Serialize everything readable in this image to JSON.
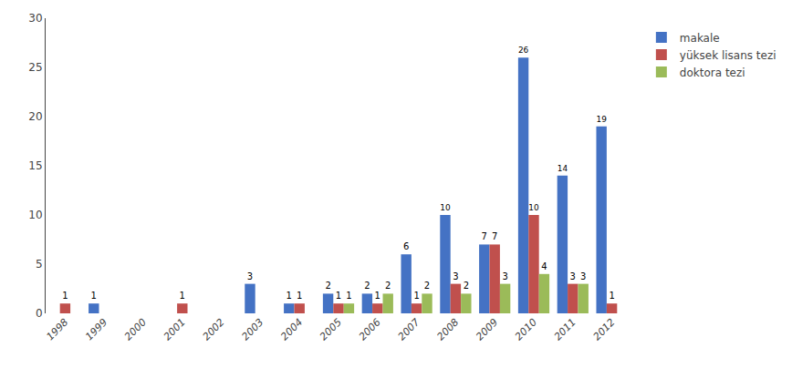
{
  "chart_data": {
    "type": "bar",
    "categories": [
      "1998",
      "1999",
      "2000",
      "2001",
      "2002",
      "2003",
      "2004",
      "2005",
      "2006",
      "2007",
      "2008",
      "2009",
      "2010",
      "2011",
      "2012"
    ],
    "series": [
      {
        "name": "makale",
        "color": "#4472C4",
        "values": [
          0,
          1,
          0,
          0,
          0,
          3,
          1,
          2,
          2,
          6,
          10,
          7,
          26,
          14,
          19
        ],
        "value_labels": [
          null,
          "1",
          null,
          null,
          null,
          "3",
          "1",
          "2",
          "2",
          "6",
          "10",
          "7",
          "26",
          "14",
          "19"
        ]
      },
      {
        "name": "yüksek lisans tezi",
        "color": "#C0504D",
        "values": [
          1,
          0,
          0,
          1,
          0,
          0,
          1,
          1,
          1,
          1,
          3,
          7,
          10,
          3,
          1
        ],
        "value_labels": [
          "1",
          null,
          null,
          "1",
          null,
          null,
          "1",
          "1",
          "1",
          "1",
          "3",
          "7",
          "10",
          "3",
          "1"
        ]
      },
      {
        "name": "doktora tezi",
        "color": "#9BBB59",
        "values": [
          0,
          0,
          0,
          0,
          0,
          0,
          0,
          1,
          2,
          2,
          2,
          3,
          4,
          3,
          0
        ],
        "value_labels": [
          null,
          null,
          null,
          null,
          null,
          null,
          null,
          "1",
          "2",
          "2",
          "2",
          "3",
          "4",
          "3",
          null
        ]
      }
    ],
    "ylim": [
      0,
      30
    ],
    "yticks": [
      0,
      5,
      10,
      15,
      20,
      25,
      30
    ],
    "grid": false,
    "legend": "right",
    "data_labels": true
  }
}
